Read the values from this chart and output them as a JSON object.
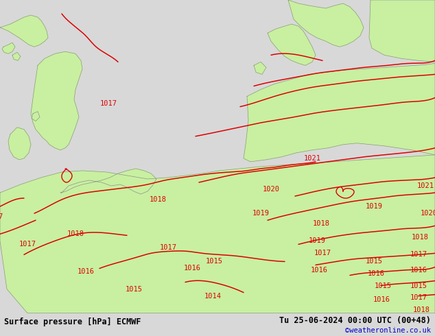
{
  "title_left": "Surface pressure [hPa] ECMWF",
  "title_right": "Tu 25-06-2024 00:00 UTC (00+48)",
  "credit": "©weatheronline.co.uk",
  "credit_color": "#0000cc",
  "bg_color": "#d8d8d8",
  "land_color": "#c8f0a0",
  "sea_color": "#d8d8d8",
  "border_color": "#909090",
  "contour_color": "#dd0000",
  "text_color": "#000000",
  "bottom_bar_color": "#c8c8c8",
  "figsize": [
    6.34,
    4.9
  ],
  "dpi": 100,
  "font_size_bottom": 8.5,
  "font_size_labels": 7.5
}
